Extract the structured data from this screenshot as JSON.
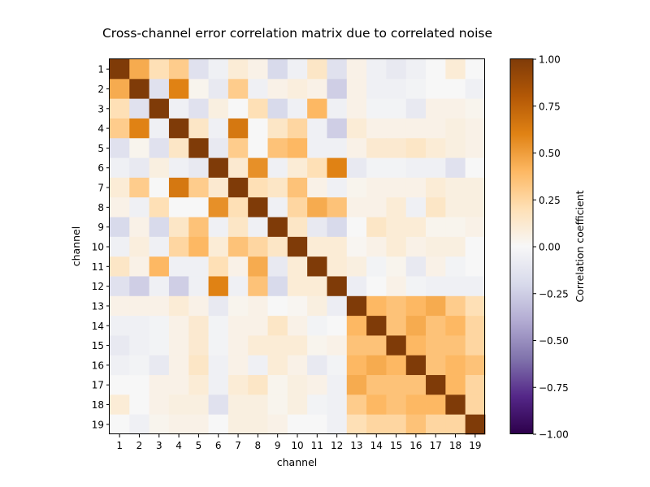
{
  "chart_data": {
    "type": "heatmap",
    "title": "Cross-channel error correlation matrix due to correlated noise",
    "xlabel": "channel",
    "ylabel": "channel",
    "x_ticks": [
      "1",
      "2",
      "3",
      "4",
      "5",
      "6",
      "7",
      "8",
      "9",
      "10",
      "11",
      "12",
      "13",
      "14",
      "15",
      "16",
      "17",
      "18",
      "19"
    ],
    "y_ticks": [
      "1",
      "2",
      "3",
      "4",
      "5",
      "6",
      "7",
      "8",
      "9",
      "10",
      "11",
      "12",
      "13",
      "14",
      "15",
      "16",
      "17",
      "18",
      "19"
    ],
    "colorbar": {
      "label": "Correlation coefficient",
      "range": [
        -1,
        1
      ],
      "ticks": [
        "−1.00",
        "−0.75",
        "−0.50",
        "−0.25",
        "0.00",
        "0.25",
        "0.50",
        "0.75",
        "1.00"
      ],
      "tick_values": [
        -1,
        -0.75,
        -0.5,
        -0.25,
        0,
        0.25,
        0.5,
        0.75,
        1
      ],
      "colormap": "PuOr_r"
    },
    "matrix": [
      [
        1.0,
        0.45,
        0.2,
        0.3,
        -0.15,
        -0.05,
        0.1,
        0.05,
        -0.2,
        -0.05,
        0.15,
        -0.15,
        0.05,
        -0.05,
        -0.1,
        -0.05,
        0.0,
        0.1,
        0.0
      ],
      [
        0.45,
        1.0,
        -0.15,
        0.6,
        0.03,
        -0.1,
        0.3,
        -0.05,
        0.05,
        0.08,
        0.05,
        -0.25,
        0.05,
        -0.05,
        -0.05,
        -0.03,
        0.0,
        0.0,
        -0.05
      ],
      [
        0.2,
        -0.15,
        1.0,
        -0.05,
        -0.15,
        0.07,
        0.0,
        0.2,
        -0.2,
        -0.05,
        0.4,
        -0.05,
        0.05,
        -0.03,
        -0.03,
        -0.1,
        0.05,
        0.05,
        0.03
      ],
      [
        0.3,
        0.6,
        -0.05,
        1.0,
        0.15,
        -0.05,
        0.65,
        0.0,
        0.15,
        0.25,
        -0.05,
        -0.25,
        0.1,
        0.05,
        0.05,
        0.05,
        0.05,
        0.07,
        0.05
      ],
      [
        -0.15,
        0.03,
        -0.15,
        0.15,
        1.0,
        -0.1,
        0.3,
        0.0,
        0.35,
        0.4,
        -0.05,
        -0.05,
        0.05,
        0.12,
        0.12,
        0.15,
        0.1,
        0.07,
        0.05
      ],
      [
        -0.05,
        -0.1,
        0.07,
        -0.05,
        -0.1,
        1.0,
        0.12,
        0.55,
        -0.05,
        0.1,
        0.2,
        0.6,
        -0.1,
        -0.03,
        -0.03,
        -0.05,
        -0.05,
        -0.15,
        0.0
      ],
      [
        0.1,
        0.3,
        0.0,
        0.65,
        0.3,
        0.12,
        1.0,
        0.2,
        0.15,
        0.35,
        0.05,
        -0.05,
        0.03,
        0.05,
        0.05,
        0.05,
        0.1,
        0.07,
        0.07
      ],
      [
        0.05,
        -0.05,
        0.2,
        0.0,
        0.0,
        0.55,
        0.2,
        1.0,
        -0.05,
        0.25,
        0.45,
        0.35,
        0.05,
        0.05,
        0.1,
        -0.05,
        0.15,
        0.07,
        0.07
      ],
      [
        -0.2,
        0.05,
        -0.2,
        0.15,
        0.35,
        -0.05,
        0.15,
        -0.05,
        1.0,
        0.15,
        -0.1,
        -0.2,
        0.0,
        0.15,
        0.1,
        0.1,
        0.03,
        0.03,
        0.05
      ],
      [
        -0.05,
        0.08,
        -0.05,
        0.25,
        0.4,
        0.1,
        0.35,
        0.25,
        0.15,
        1.0,
        0.1,
        0.1,
        0.02,
        0.05,
        0.1,
        0.05,
        0.07,
        0.07,
        0.0
      ],
      [
        0.15,
        0.05,
        0.4,
        -0.05,
        -0.05,
        0.2,
        0.05,
        0.45,
        -0.1,
        0.1,
        1.0,
        0.1,
        0.07,
        -0.03,
        0.03,
        -0.1,
        0.05,
        -0.03,
        0.0
      ],
      [
        -0.15,
        -0.25,
        -0.05,
        -0.25,
        -0.05,
        0.6,
        -0.05,
        0.35,
        -0.2,
        0.1,
        0.1,
        1.0,
        -0.07,
        0.0,
        0.05,
        -0.03,
        -0.05,
        -0.05,
        -0.05
      ],
      [
        0.05,
        0.05,
        0.05,
        0.1,
        0.05,
        -0.1,
        0.03,
        0.05,
        0.0,
        0.02,
        0.07,
        -0.07,
        1.0,
        0.4,
        0.35,
        0.4,
        0.45,
        0.3,
        0.2
      ],
      [
        -0.05,
        -0.05,
        -0.03,
        0.05,
        0.12,
        -0.03,
        0.05,
        0.05,
        0.15,
        0.05,
        -0.03,
        0.0,
        0.4,
        1.0,
        0.35,
        0.45,
        0.35,
        0.4,
        0.25
      ],
      [
        -0.1,
        -0.05,
        -0.03,
        0.05,
        0.12,
        -0.03,
        0.05,
        0.1,
        0.1,
        0.1,
        0.03,
        0.05,
        0.35,
        0.35,
        1.0,
        0.4,
        0.35,
        0.35,
        0.25
      ],
      [
        -0.05,
        -0.03,
        -0.1,
        0.05,
        0.15,
        -0.05,
        0.05,
        -0.05,
        0.1,
        0.05,
        -0.1,
        -0.03,
        0.4,
        0.45,
        0.4,
        1.0,
        0.35,
        0.4,
        0.35
      ],
      [
        0.0,
        0.0,
        0.05,
        0.05,
        0.1,
        -0.05,
        0.1,
        0.15,
        0.03,
        0.07,
        0.05,
        -0.05,
        0.45,
        0.35,
        0.35,
        0.35,
        1.0,
        0.4,
        0.25
      ],
      [
        0.1,
        0.0,
        0.05,
        0.07,
        0.07,
        -0.15,
        0.07,
        0.07,
        0.03,
        0.07,
        -0.03,
        -0.05,
        0.3,
        0.4,
        0.35,
        0.4,
        0.4,
        1.0,
        0.25
      ],
      [
        0.0,
        -0.05,
        0.03,
        0.05,
        0.05,
        0.0,
        0.07,
        0.07,
        0.05,
        0.0,
        0.0,
        -0.05,
        0.2,
        0.25,
        0.25,
        0.35,
        0.25,
        0.25,
        1.0
      ]
    ]
  }
}
